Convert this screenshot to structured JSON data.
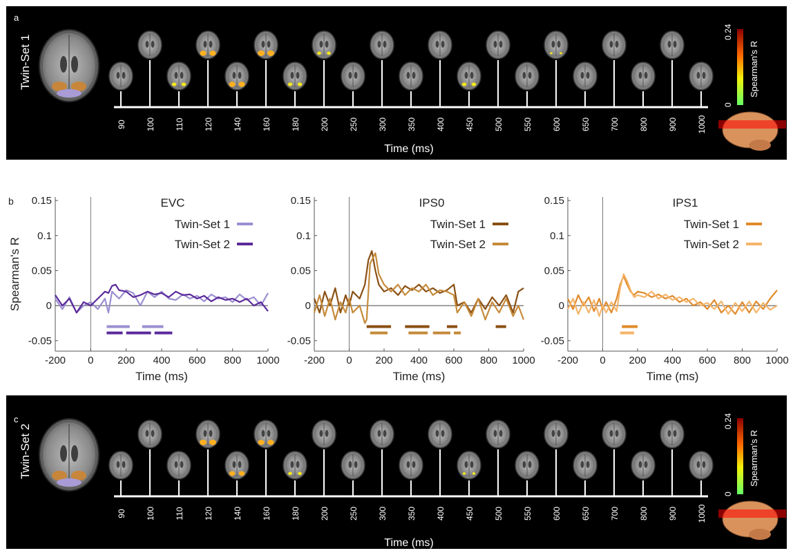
{
  "panels": {
    "a": {
      "letter": "a",
      "side_label": "Twin-Set 1",
      "time_title": "Time (ms)"
    },
    "b": {
      "letter": "b"
    },
    "c": {
      "letter": "c",
      "side_label": "Twin-Set 2",
      "time_title": "Time (ms)"
    }
  },
  "timeline_ticks": [
    "90",
    "100",
    "110",
    "120",
    "140",
    "160",
    "180",
    "200",
    "250",
    "300",
    "350",
    "400",
    "450",
    "500",
    "550",
    "600",
    "650",
    "700",
    "800",
    "900",
    "1000"
  ],
  "blobs_a": [
    0,
    0,
    0.5,
    0.9,
    0.9,
    1,
    0.5,
    0.4,
    0,
    0,
    0,
    0,
    0.5,
    0,
    0,
    0.1,
    0,
    0,
    0,
    0,
    0
  ],
  "blobs_c": [
    0,
    0,
    0,
    1,
    0.8,
    0.9,
    0.4,
    0,
    0,
    0,
    0,
    0,
    0.2,
    0,
    0,
    0,
    0,
    0,
    0,
    0,
    0
  ],
  "colorbar": {
    "max_label": "0.24",
    "min_label": "0",
    "title": "Spearman's R",
    "max": 0.24,
    "min": 0
  },
  "chart_data": [
    {
      "type": "line",
      "title": "EVC",
      "xlabel": "Time (ms)",
      "ylabel": "Spearman's R",
      "xlim": [
        -200,
        1000
      ],
      "ylim": [
        -0.065,
        0.155
      ],
      "xticks": [
        "-200",
        "0",
        "200",
        "400",
        "600",
        "800",
        "1000"
      ],
      "yticks": [
        "0.15",
        "0.1",
        "0.05",
        "0",
        "-0.05"
      ],
      "series": [
        {
          "name": "Twin-Set 1",
          "color": "#9b8fd0",
          "x": [
            -200,
            -160,
            -120,
            -80,
            -40,
            0,
            40,
            80,
            100,
            120,
            160,
            200,
            240,
            280,
            320,
            360,
            400,
            440,
            480,
            520,
            560,
            600,
            640,
            680,
            720,
            760,
            800,
            840,
            880,
            920,
            960,
            1000
          ],
          "y": [
            0.01,
            -0.005,
            0.012,
            -0.01,
            0.0,
            0.005,
            -0.005,
            0.01,
            -0.01,
            0.02,
            0.01,
            0.022,
            0.018,
            0.0,
            0.02,
            0.012,
            0.02,
            0.01,
            0.008,
            0.016,
            0.01,
            0.014,
            0.006,
            0.016,
            0.01,
            0.012,
            0.005,
            0.016,
            0.008,
            0.012,
            0.0,
            0.018
          ]
        },
        {
          "name": "Twin-Set 2",
          "color": "#5b2a9a",
          "x": [
            -200,
            -160,
            -120,
            -80,
            -40,
            0,
            40,
            80,
            100,
            120,
            140,
            160,
            200,
            240,
            280,
            320,
            360,
            400,
            440,
            480,
            520,
            560,
            600,
            640,
            680,
            720,
            760,
            800,
            840,
            880,
            920,
            960,
            1000
          ],
          "y": [
            0.015,
            0.0,
            0.01,
            -0.01,
            0.005,
            0.0,
            0.01,
            0.02,
            0.018,
            0.028,
            0.03,
            0.022,
            0.02,
            0.012,
            0.015,
            0.02,
            0.016,
            0.018,
            0.012,
            0.02,
            0.015,
            0.016,
            0.01,
            0.014,
            0.006,
            0.012,
            0.008,
            0.01,
            0.005,
            0.01,
            0.0,
            0.005,
            -0.008
          ]
        }
      ],
      "significance": [
        {
          "series": "Twin-Set 1",
          "y": -0.03,
          "intervals": [
            [
              90,
              220
            ],
            [
              290,
              410
            ]
          ]
        },
        {
          "series": "Twin-Set 2",
          "y": -0.039,
          "intervals": [
            [
              90,
              180
            ],
            [
              200,
              340
            ],
            [
              360,
              460
            ]
          ]
        }
      ],
      "legend": "top-right"
    },
    {
      "type": "line",
      "title": "IPS0",
      "xlabel": "Time (ms)",
      "ylabel": "",
      "xlim": [
        -200,
        1000
      ],
      "ylim": [
        -0.065,
        0.155
      ],
      "xticks": [
        "-200",
        "0",
        "200",
        "400",
        "600",
        "800",
        "1000"
      ],
      "yticks": [
        "0.15",
        "0.1",
        "0.05",
        "0",
        "-0.05"
      ],
      "series": [
        {
          "name": "Twin-Set 1",
          "color": "#8a4f12",
          "x": [
            -200,
            -170,
            -140,
            -110,
            -80,
            -50,
            -20,
            0,
            20,
            60,
            90,
            110,
            130,
            150,
            170,
            200,
            240,
            280,
            320,
            360,
            400,
            440,
            480,
            520,
            560,
            600,
            620,
            660,
            700,
            740,
            780,
            820,
            860,
            900,
            940,
            970,
            1000
          ],
          "y": [
            0.01,
            -0.01,
            0.02,
            0.0,
            0.025,
            -0.01,
            0.015,
            0.0,
            0.02,
            0.01,
            0.03,
            0.065,
            0.078,
            0.05,
            0.03,
            0.02,
            0.025,
            0.015,
            0.028,
            0.022,
            0.03,
            0.02,
            0.025,
            0.018,
            0.022,
            0.03,
            0.0,
            0.005,
            -0.01,
            0.01,
            -0.005,
            0.012,
            0.0,
            0.015,
            -0.01,
            0.02,
            0.025
          ]
        },
        {
          "name": "Twin-Set 2",
          "color": "#c58a3a",
          "x": [
            -200,
            -170,
            -140,
            -110,
            -80,
            -50,
            -20,
            0,
            20,
            60,
            90,
            100,
            120,
            150,
            170,
            200,
            240,
            280,
            320,
            360,
            400,
            440,
            480,
            520,
            560,
            600,
            620,
            660,
            700,
            740,
            780,
            820,
            860,
            900,
            940,
            970,
            1000
          ],
          "y": [
            -0.01,
            0.015,
            -0.015,
            0.01,
            -0.02,
            0.005,
            -0.01,
            0.01,
            -0.01,
            0.0,
            -0.025,
            -0.02,
            0.06,
            0.075,
            0.045,
            0.03,
            0.02,
            0.03,
            0.015,
            0.025,
            0.02,
            0.03,
            0.015,
            0.022,
            0.02,
            0.015,
            -0.01,
            0.005,
            -0.015,
            0.01,
            -0.02,
            0.005,
            -0.01,
            0.01,
            -0.015,
            0.0,
            -0.02
          ]
        }
      ],
      "significance": [
        {
          "series": "Twin-Set 1",
          "y": -0.03,
          "intervals": [
            [
              100,
              240
            ],
            [
              320,
              460
            ],
            [
              560,
              620
            ],
            [
              840,
              900
            ]
          ]
        },
        {
          "series": "Twin-Set 2",
          "y": -0.039,
          "intervals": [
            [
              120,
              220
            ],
            [
              340,
              450
            ],
            [
              480,
              580
            ],
            [
              600,
              640
            ]
          ]
        }
      ],
      "legend": "top-right"
    },
    {
      "type": "line",
      "title": "IPS1",
      "xlabel": "Time (ms)",
      "ylabel": "",
      "xlim": [
        -200,
        1000
      ],
      "ylim": [
        -0.065,
        0.155
      ],
      "xticks": [
        "-200",
        "0",
        "200",
        "400",
        "600",
        "800",
        "1000"
      ],
      "yticks": [
        "0.15",
        "0.1",
        "0.05",
        "0",
        "-0.05"
      ],
      "series": [
        {
          "name": "Twin-Set 1",
          "color": "#e08a2a",
          "x": [
            -200,
            -170,
            -140,
            -110,
            -80,
            -50,
            -20,
            0,
            20,
            50,
            80,
            100,
            120,
            140,
            160,
            180,
            200,
            240,
            280,
            320,
            360,
            400,
            440,
            480,
            520,
            560,
            600,
            640,
            680,
            720,
            760,
            800,
            840,
            880,
            920,
            960,
            1000
          ],
          "y": [
            0.01,
            -0.005,
            0.015,
            0.0,
            0.012,
            -0.008,
            0.01,
            -0.005,
            0.005,
            -0.01,
            0.01,
            0.03,
            0.042,
            0.03,
            0.02,
            0.015,
            0.02,
            0.018,
            0.012,
            0.016,
            0.01,
            0.014,
            0.005,
            0.01,
            0.0,
            0.005,
            -0.005,
            0.008,
            -0.01,
            0.0,
            -0.012,
            0.005,
            -0.01,
            0.006,
            -0.005,
            0.01,
            0.022
          ]
        },
        {
          "name": "Twin-Set 2",
          "color": "#f5b56a",
          "x": [
            -200,
            -170,
            -140,
            -110,
            -80,
            -50,
            -20,
            0,
            20,
            50,
            80,
            100,
            120,
            140,
            160,
            180,
            200,
            240,
            280,
            320,
            360,
            400,
            440,
            480,
            520,
            560,
            600,
            640,
            680,
            720,
            760,
            800,
            840,
            880,
            920,
            960,
            1000
          ],
          "y": [
            -0.005,
            0.01,
            -0.012,
            0.005,
            -0.01,
            0.008,
            -0.015,
            0.0,
            -0.01,
            0.005,
            -0.008,
            0.025,
            0.045,
            0.035,
            0.022,
            0.012,
            0.015,
            0.012,
            0.02,
            0.01,
            0.016,
            0.008,
            0.012,
            0.005,
            0.01,
            0.0,
            0.004,
            -0.005,
            0.006,
            -0.012,
            0.004,
            -0.008,
            0.006,
            -0.01,
            0.004,
            -0.006,
            0.0
          ]
        }
      ],
      "significance": [
        {
          "series": "Twin-Set 1",
          "y": -0.03,
          "intervals": [
            [
              110,
              200
            ]
          ]
        },
        {
          "series": "Twin-Set 2",
          "y": -0.039,
          "intervals": [
            [
              100,
              180
            ]
          ]
        }
      ],
      "legend": "top-right"
    }
  ]
}
